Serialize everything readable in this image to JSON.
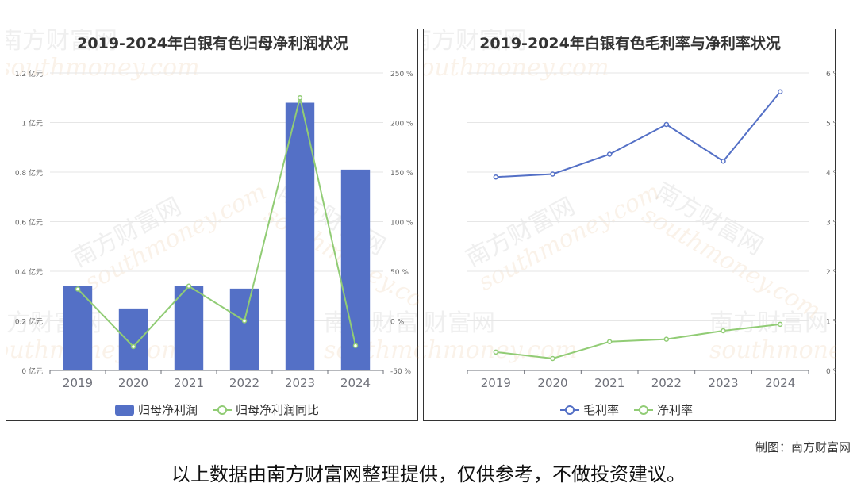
{
  "watermark": {
    "cn": "南方财富网",
    "en": "southmoney.com"
  },
  "credit": "制图：南方财富网",
  "disclaimer": "以上数据由南方财富网整理提供，仅供参考，不做投资建议。",
  "colors": {
    "blue": "#5470c6",
    "green": "#91cc75",
    "axis_text": "#666666",
    "grid": "#e6e6e6"
  },
  "chart_data": [
    {
      "type": "bar",
      "title": "2019-2024年白银有色归母净利润状况",
      "categories": [
        "2019",
        "2020",
        "2021",
        "2022",
        "2023",
        "2024"
      ],
      "y_left": {
        "ylim": [
          0,
          1.2
        ],
        "ticks": [
          "0 亿元",
          "0.2 亿元",
          "0.4 亿元",
          "0.6 亿元",
          "0.8 亿元",
          "1 亿元",
          "1.2 亿元"
        ]
      },
      "y_right": {
        "ylim": [
          -50,
          250
        ],
        "ticks": [
          "-50 %",
          "0 %",
          "50 %",
          "100 %",
          "150 %",
          "200 %",
          "250 %"
        ]
      },
      "series": [
        {
          "name": "归母净利润",
          "kind": "bar",
          "axis": "left",
          "color": "#5470c6",
          "values": [
            0.34,
            0.25,
            0.34,
            0.33,
            1.08,
            0.81
          ]
        },
        {
          "name": "归母净利润同比",
          "kind": "line",
          "axis": "right",
          "color": "#91cc75",
          "values": [
            32,
            -26,
            35,
            0,
            225,
            -25
          ]
        }
      ],
      "legend": "bottom-center"
    },
    {
      "type": "line",
      "title": "2019-2024年白银有色毛利率与净利率状况",
      "categories": [
        "2019",
        "2020",
        "2021",
        "2022",
        "2023",
        "2024"
      ],
      "y_right": {
        "ylim": [
          0,
          6
        ],
        "ticks": [
          "0 %",
          "1 %",
          "2 %",
          "3 %",
          "4 %",
          "5 %",
          "6 %"
        ]
      },
      "series": [
        {
          "name": "毛利率",
          "color": "#5470c6",
          "values": [
            3.9,
            3.96,
            4.36,
            4.96,
            4.22,
            5.62
          ]
        },
        {
          "name": "净利率",
          "color": "#91cc75",
          "values": [
            0.37,
            0.24,
            0.58,
            0.63,
            0.8,
            0.93
          ]
        }
      ],
      "legend": "bottom-center"
    }
  ]
}
